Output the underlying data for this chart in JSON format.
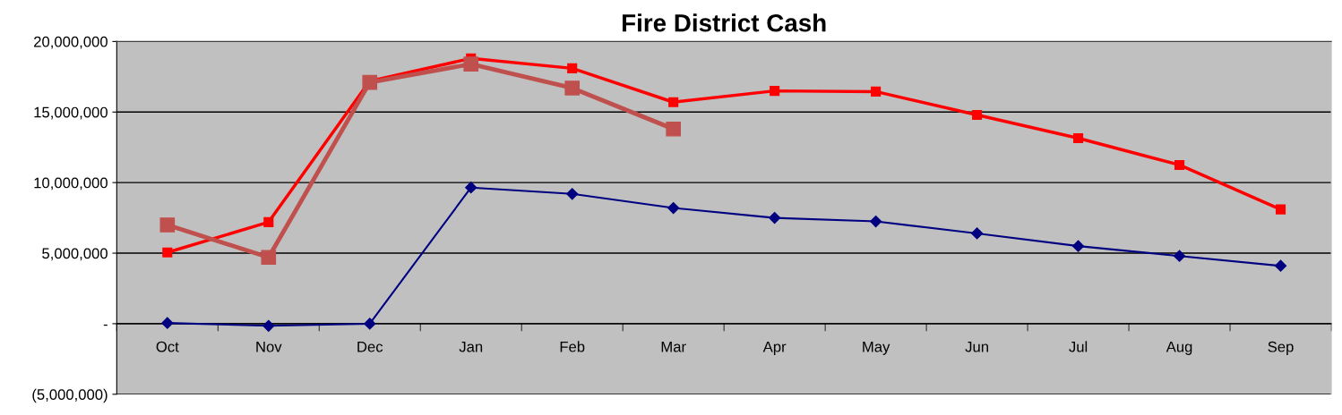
{
  "chart_data": {
    "type": "line",
    "title": "Fire District Cash",
    "categories": [
      "Oct",
      "Nov",
      "Dec",
      "Jan",
      "Feb",
      "Mar",
      "Apr",
      "May",
      "Jun",
      "Jul",
      "Aug",
      "Sep"
    ],
    "series": [
      {
        "color": "#ff0000",
        "marker": "square",
        "values": [
          5050000,
          7200000,
          17200000,
          18800000,
          18100000,
          15700000,
          16500000,
          16450000,
          14800000,
          13150000,
          11250000,
          8100000
        ]
      },
      {
        "color": "#c0504d",
        "marker": "square",
        "values": [
          7000000,
          4700000,
          17100000,
          18400000,
          16700000,
          13800000,
          null,
          null,
          null,
          null,
          null,
          null
        ]
      },
      {
        "color": "#000080",
        "marker": "diamond",
        "values": [
          50000,
          -150000,
          0,
          9650000,
          9200000,
          8200000,
          7500000,
          7250000,
          6400000,
          5500000,
          4800000,
          4100000
        ]
      }
    ],
    "ylim": [
      -5000000,
      20000000
    ],
    "yticks": [
      {
        "value": -5000000,
        "label": "(5,000,000)"
      },
      {
        "value": 0,
        "label": "-"
      },
      {
        "value": 5000000,
        "label": "5,000,000"
      },
      {
        "value": 10000000,
        "label": "10,000,000"
      },
      {
        "value": 15000000,
        "label": "15,000,000"
      },
      {
        "value": 20000000,
        "label": "20,000,000"
      }
    ],
    "grid": "y",
    "legend": false
  }
}
